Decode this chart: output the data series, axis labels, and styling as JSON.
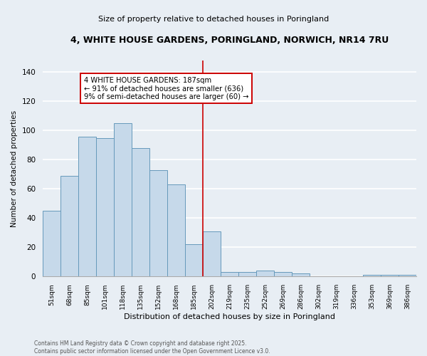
{
  "title_line1": "4, WHITE HOUSE GARDENS, PORINGLAND, NORWICH, NR14 7RU",
  "title_line2": "Size of property relative to detached houses in Poringland",
  "xlabel": "Distribution of detached houses by size in Poringland",
  "ylabel": "Number of detached properties",
  "bar_labels": [
    "51sqm",
    "68sqm",
    "85sqm",
    "101sqm",
    "118sqm",
    "135sqm",
    "152sqm",
    "168sqm",
    "185sqm",
    "202sqm",
    "219sqm",
    "235sqm",
    "252sqm",
    "269sqm",
    "286sqm",
    "302sqm",
    "319sqm",
    "336sqm",
    "353sqm",
    "369sqm",
    "386sqm"
  ],
  "bar_values": [
    45,
    69,
    96,
    95,
    105,
    88,
    73,
    63,
    22,
    31,
    3,
    3,
    4,
    3,
    2,
    0,
    0,
    0,
    1,
    1,
    1
  ],
  "bar_color": "#c6d9ea",
  "bar_edgecolor": "#6699bb",
  "vline_x_index": 8.5,
  "vline_color": "#cc0000",
  "annotation_text": "4 WHITE HOUSE GARDENS: 187sqm\n← 91% of detached houses are smaller (636)\n9% of semi-detached houses are larger (60) →",
  "annotation_box_color": "white",
  "annotation_box_edgecolor": "#cc0000",
  "ylim": [
    0,
    148
  ],
  "yticks": [
    0,
    20,
    40,
    60,
    80,
    100,
    120,
    140
  ],
  "footer_text": "Contains HM Land Registry data © Crown copyright and database right 2025.\nContains public sector information licensed under the Open Government Licence v3.0.",
  "background_color": "#e8eef4",
  "grid_color": "white"
}
